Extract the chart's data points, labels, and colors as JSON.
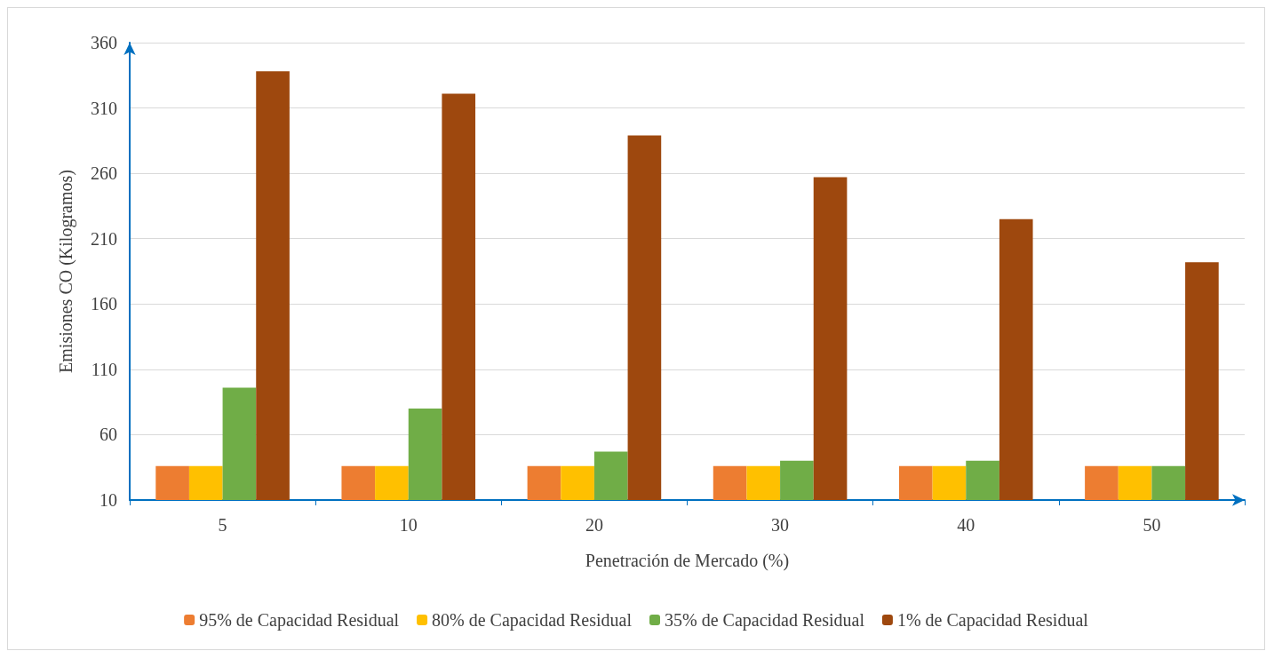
{
  "chart_data": {
    "type": "bar",
    "xlabel": "Penetración de Mercado (%)",
    "ylabel": "Emisiones CO (Kilogramos)",
    "categories": [
      "5",
      "10",
      "20",
      "30",
      "40",
      "50"
    ],
    "series": [
      {
        "name": "95% de Capacidad Residual",
        "color": "#ed7d31",
        "values": [
          36,
          36,
          36,
          36,
          36,
          36
        ]
      },
      {
        "name": "80% de Capacidad Residual",
        "color": "#ffc000",
        "values": [
          36,
          36,
          36,
          36,
          36,
          36
        ]
      },
      {
        "name": "35% de Capacidad Residual",
        "color": "#70ad47",
        "values": [
          96,
          80,
          47,
          40,
          40,
          36
        ]
      },
      {
        "name": "1% de Capacidad Residual",
        "color": "#9e480e",
        "values": [
          338,
          321,
          289,
          257,
          225,
          192
        ]
      }
    ],
    "ylim": [
      10,
      360
    ],
    "yticks": [
      10,
      60,
      110,
      160,
      210,
      260,
      310,
      360
    ],
    "grid": "y",
    "legend": "bottom"
  }
}
